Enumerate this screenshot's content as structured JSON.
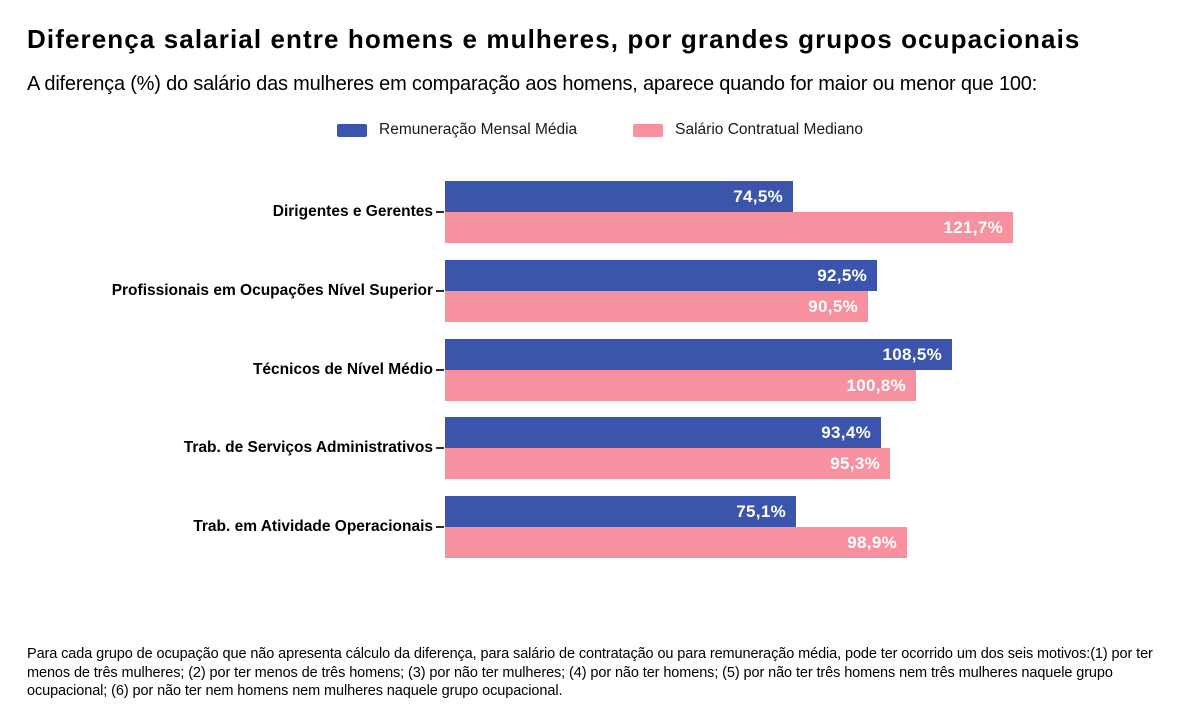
{
  "header": {
    "title": "Diferença salarial entre homens e mulheres, por grandes grupos ocupacionais",
    "subtitle": "A diferença (%) do salário das mulheres em comparação aos homens, aparece quando for maior ou menor que 100:"
  },
  "chart_data": {
    "type": "bar",
    "orientation": "horizontal",
    "title": "Diferença salarial entre homens e mulheres, por grandes grupos ocupacionais",
    "xlabel": "",
    "ylabel": "",
    "xlim": [
      0,
      130
    ],
    "grid": false,
    "legend_position": "top",
    "value_label_color": "#FFFFFF",
    "categories": [
      "Dirigentes e Gerentes",
      "Profissionais em Ocupações Nível Superior",
      "Técnicos de Nível Médio",
      "Trab. de Serviços Administrativos",
      "Trab. em Atividade Operacionais"
    ],
    "series": [
      {
        "name": "Remuneração Mensal Média",
        "color": "#3B55AC",
        "values": [
          74.5,
          92.5,
          108.5,
          93.4,
          75.1
        ],
        "labels": [
          "74,5%",
          "92,5%",
          "108,5%",
          "93,4%",
          "75,1%"
        ]
      },
      {
        "name": "Salário Contratual Mediano",
        "color": "#F8919F",
        "values": [
          121.7,
          90.5,
          100.8,
          95.3,
          98.9
        ],
        "labels": [
          "121,7%",
          "90,5%",
          "100,8%",
          "95,3%",
          "98,9%"
        ]
      }
    ]
  },
  "footnote": "Para cada grupo de ocupação que não apresenta cálculo da diferença, para salário de contratação ou para remuneração média, pode ter ocorrido um dos seis motivos:(1) por ter menos de três mulheres; (2) por ter menos de três homens; (3) por não ter mulheres; (4) por não ter homens; (5) por não ter três homens nem três mulheres naquele grupo ocupacional; (6) por não ter nem homens nem mulheres naquele grupo ocupacional."
}
